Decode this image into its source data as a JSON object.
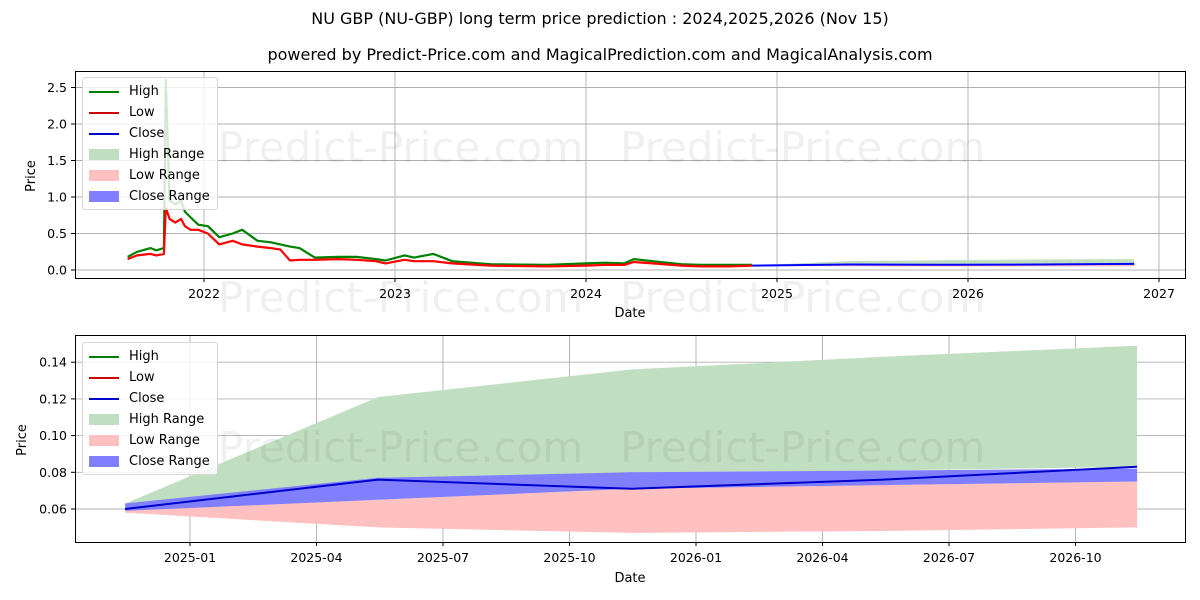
{
  "title": "NU GBP (NU-GBP) long term price prediction : 2024,2025,2026 (Nov 15)",
  "subtitle": "powered by Predict-Price.com and MagicalPrediction.com and MagicalAnalysis.com",
  "watermark": "Predict-Price.com",
  "colors": {
    "high": "#008000",
    "low": "#ff0000",
    "close": "#0000ff",
    "high_range": "#c0dfc0",
    "low_range": "#ffc0c0",
    "close_range": "#8080ff"
  },
  "legend": {
    "items": [
      {
        "label": "High",
        "kind": "line",
        "color": "#008000"
      },
      {
        "label": "Low",
        "kind": "line",
        "color": "#cc0000"
      },
      {
        "label": "Close",
        "kind": "line",
        "color": "#0000cc"
      },
      {
        "label": "High Range",
        "kind": "patch",
        "color": "#c0dfc0"
      },
      {
        "label": "Low Range",
        "kind": "patch",
        "color": "#ffc0c0"
      },
      {
        "label": "Close Range",
        "kind": "patch",
        "color": "#8080ff"
      }
    ]
  },
  "chart_data": [
    {
      "type": "line",
      "title": "Full history + forecast",
      "xlabel": "Date",
      "ylabel": "Price",
      "xlim": [
        2021.37,
        2027.14
      ],
      "ylim": [
        -0.1,
        2.75
      ],
      "grid": true,
      "legend_position": "upper left",
      "xticks": [
        "2022",
        "2023",
        "2024",
        "2025",
        "2026",
        "2027"
      ],
      "yticks": [
        "0.0",
        "0.5",
        "1.0",
        "1.5",
        "2.0",
        "2.5"
      ],
      "series": [
        {
          "name": "High",
          "x": [
            2021.6,
            2021.65,
            2021.72,
            2021.75,
            2021.79,
            2021.8,
            2021.82,
            2021.85,
            2021.88,
            2021.9,
            2021.93,
            2021.97,
            2022.02,
            2022.08,
            2022.15,
            2022.2,
            2022.28,
            2022.35,
            2022.4,
            2022.45,
            2022.5,
            2022.58,
            2022.7,
            2022.8,
            2022.9,
            2022.95,
            2023.05,
            2023.1,
            2023.2,
            2023.3,
            2023.5,
            2023.8,
            2024.0,
            2024.1,
            2024.2,
            2024.25,
            2024.35,
            2024.5,
            2024.6,
            2024.75,
            2024.87
          ],
          "values": [
            0.18,
            0.25,
            0.3,
            0.27,
            0.3,
            2.6,
            0.95,
            0.9,
            0.95,
            0.8,
            0.72,
            0.62,
            0.6,
            0.45,
            0.5,
            0.55,
            0.4,
            0.38,
            0.35,
            0.32,
            0.3,
            0.17,
            0.18,
            0.18,
            0.15,
            0.13,
            0.2,
            0.17,
            0.22,
            0.12,
            0.08,
            0.07,
            0.09,
            0.1,
            0.09,
            0.15,
            0.12,
            0.08,
            0.07,
            0.07,
            0.07
          ]
        },
        {
          "name": "Low",
          "x": [
            2021.6,
            2021.65,
            2021.72,
            2021.75,
            2021.79,
            2021.8,
            2021.82,
            2021.85,
            2021.88,
            2021.9,
            2021.93,
            2021.97,
            2022.02,
            2022.08,
            2022.15,
            2022.2,
            2022.28,
            2022.35,
            2022.4,
            2022.45,
            2022.5,
            2022.58,
            2022.7,
            2022.8,
            2022.9,
            2022.95,
            2023.05,
            2023.1,
            2023.2,
            2023.3,
            2023.5,
            2023.8,
            2024.0,
            2024.1,
            2024.2,
            2024.25,
            2024.35,
            2024.5,
            2024.6,
            2024.75,
            2024.87
          ],
          "values": [
            0.15,
            0.2,
            0.22,
            0.2,
            0.22,
            0.85,
            0.7,
            0.65,
            0.7,
            0.6,
            0.55,
            0.55,
            0.5,
            0.35,
            0.4,
            0.35,
            0.32,
            0.3,
            0.28,
            0.13,
            0.14,
            0.14,
            0.15,
            0.14,
            0.12,
            0.09,
            0.14,
            0.12,
            0.12,
            0.09,
            0.06,
            0.05,
            0.06,
            0.07,
            0.07,
            0.11,
            0.09,
            0.06,
            0.05,
            0.05,
            0.06
          ]
        },
        {
          "name": "Close",
          "x": [
            2024.87,
            2025.37,
            2025.87,
            2026.37,
            2026.87
          ],
          "values": [
            0.06,
            0.076,
            0.071,
            0.076,
            0.083
          ]
        }
      ]
    },
    {
      "type": "area",
      "title": "Forecast detail",
      "xlabel": "Date",
      "ylabel": "Price",
      "ylim": [
        0.042,
        0.155
      ],
      "grid": true,
      "legend_position": "upper left",
      "xticks": [
        "2025-01",
        "2025-04",
        "2025-07",
        "2025-10",
        "2026-01",
        "2026-04",
        "2026-07",
        "2026-10"
      ],
      "yticks": [
        "0.06",
        "0.08",
        "0.10",
        "0.12",
        "0.14"
      ],
      "x": [
        "2024-11-15",
        "2025-05-15",
        "2025-11-15",
        "2026-05-15",
        "2026-11-15"
      ],
      "series": [
        {
          "name": "Close",
          "values": [
            0.06,
            0.076,
            0.071,
            0.076,
            0.083
          ]
        },
        {
          "name": "High Range",
          "lower": [
            0.06,
            0.076,
            0.08,
            0.081,
            0.083
          ],
          "upper": [
            0.063,
            0.121,
            0.136,
            0.143,
            0.149
          ]
        },
        {
          "name": "Close Range",
          "lower": [
            0.059,
            0.065,
            0.071,
            0.073,
            0.075
          ],
          "upper": [
            0.063,
            0.077,
            0.08,
            0.081,
            0.082
          ]
        },
        {
          "name": "Low Range",
          "lower": [
            0.058,
            0.05,
            0.047,
            0.048,
            0.05
          ],
          "upper": [
            0.06,
            0.065,
            0.071,
            0.073,
            0.075
          ]
        }
      ]
    }
  ]
}
